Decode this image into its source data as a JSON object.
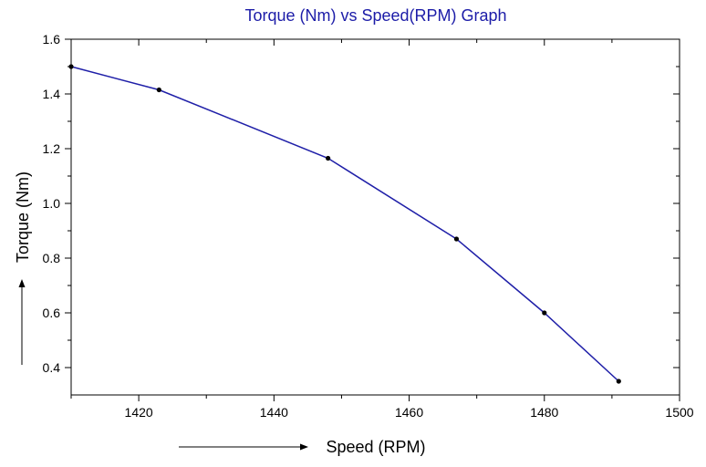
{
  "chart_data": {
    "type": "line",
    "title": "Torque (Nm) vs Speed(RPM) Graph",
    "xlabel": "Speed (RPM)",
    "ylabel": "Torque (Nm)",
    "xlim": [
      1410,
      1500
    ],
    "ylim": [
      0.3,
      1.6
    ],
    "xticks": [
      1420,
      1440,
      1460,
      1480,
      1500
    ],
    "yticks": [
      0.4,
      0.6,
      0.8,
      1.0,
      1.2,
      1.4,
      1.6
    ],
    "x_tick_labels": [
      "1420",
      "1440",
      "1460",
      "1480",
      "1500"
    ],
    "y_tick_labels": [
      "0.4",
      "0.6",
      "0.8",
      "1.0",
      "1.2",
      "1.4",
      "1.6"
    ],
    "grid": false,
    "series": [
      {
        "x": [
          1410,
          1423,
          1448,
          1467,
          1480,
          1491
        ],
        "y": [
          1.5,
          1.415,
          1.165,
          0.87,
          0.6,
          0.35
        ],
        "color": "#1f1fa8"
      }
    ],
    "colors": {
      "title": "#1c1ca8",
      "line": "#1f1fa8",
      "marker": "#000000",
      "axis": "#000000"
    }
  }
}
